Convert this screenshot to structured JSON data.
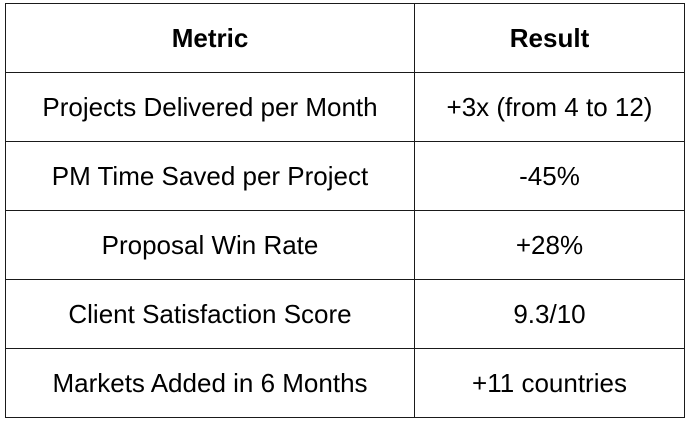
{
  "table": {
    "headers": {
      "metric": "Metric",
      "result": "Result"
    },
    "rows": [
      {
        "metric": "Projects Delivered per Month",
        "result": "+3x (from 4 to 12)"
      },
      {
        "metric": "PM Time Saved per Project",
        "result": "-45%"
      },
      {
        "metric": "Proposal Win Rate",
        "result": "+28%"
      },
      {
        "metric": "Client Satisfaction Score",
        "result": "9.3/10"
      },
      {
        "metric": "Markets Added in 6 Months",
        "result": "+11 countries"
      }
    ]
  }
}
